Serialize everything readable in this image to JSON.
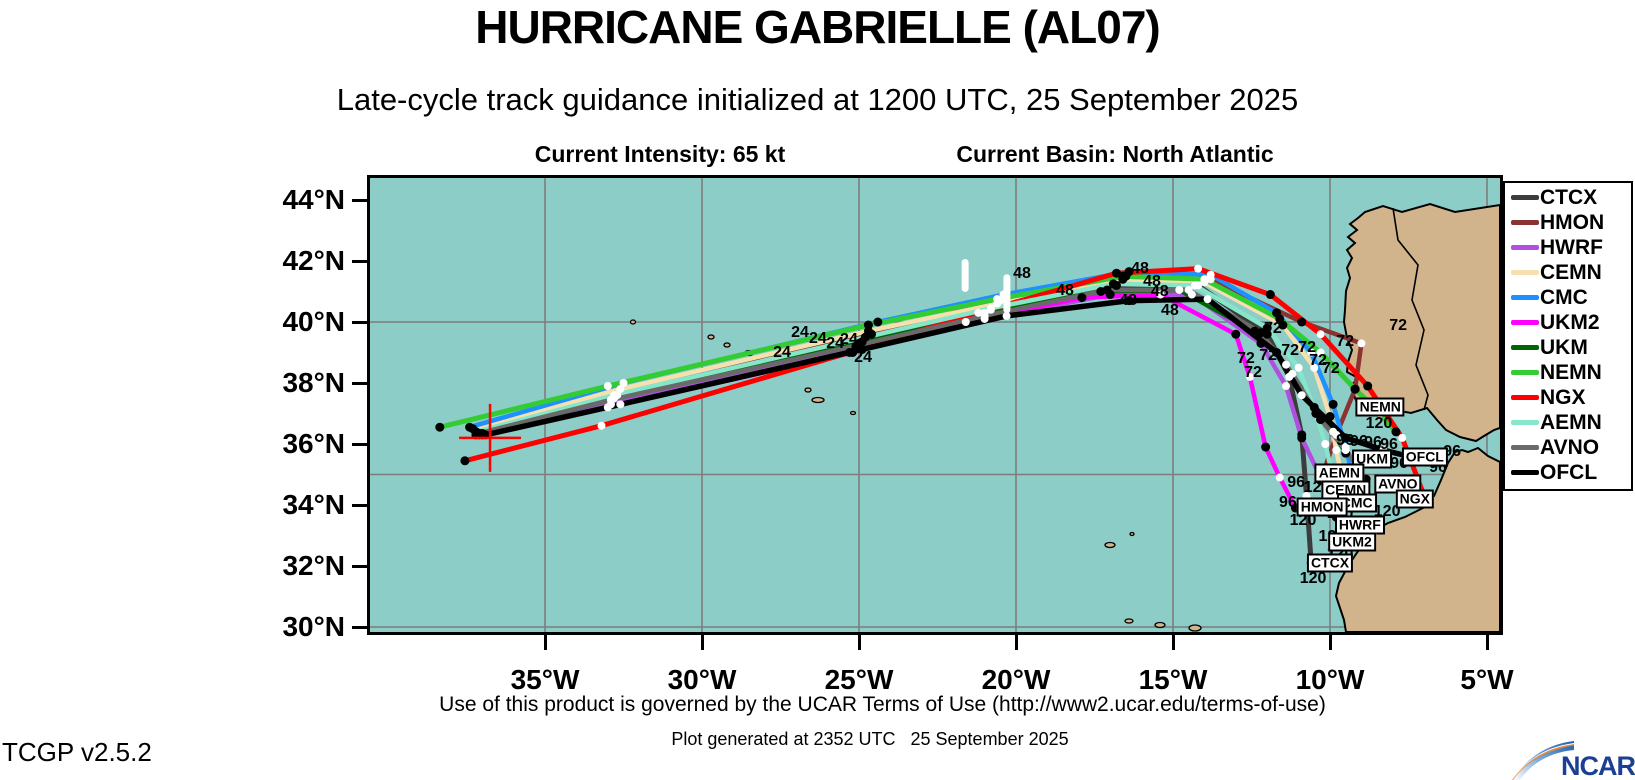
{
  "title": "HURRICANE GABRIELLE (AL07)",
  "subtitle": "Late-cycle track guidance initialized at 1200 UTC, 25 September 2025",
  "info": {
    "intensity": "Current Intensity: 65 kt",
    "basin": "Current Basin: North Atlantic"
  },
  "footer": {
    "terms": "Use of this product is governed by the UCAR Terms of Use (http://www2.ucar.edu/terms-of-use)",
    "generated": "Plot generated at 2352 UTC   25 September 2025",
    "version": "TCGP v2.5.2",
    "logo_text": "NCAR"
  },
  "map": {
    "water_color": "#8ccdc8",
    "land_color": "#d2b48c",
    "grid_color": "#7d7d7d",
    "coast_color": "#000000"
  },
  "axes": {
    "x_ticks": [
      {
        "label": "35°W",
        "lon": 35
      },
      {
        "label": "30°W",
        "lon": 30
      },
      {
        "label": "25°W",
        "lon": 25
      },
      {
        "label": "20°W",
        "lon": 20
      },
      {
        "label": "15°W",
        "lon": 15
      },
      {
        "label": "10°W",
        "lon": 10
      },
      {
        "label": "5°W",
        "lon": 5
      }
    ],
    "y_ticks": [
      {
        "label": "44°N",
        "lat": 44
      },
      {
        "label": "42°N",
        "lat": 42
      },
      {
        "label": "40°N",
        "lat": 40
      },
      {
        "label": "38°N",
        "lat": 38
      },
      {
        "label": "36°N",
        "lat": 36
      },
      {
        "label": "34°N",
        "lat": 34
      },
      {
        "label": "32°N",
        "lat": 32
      },
      {
        "label": "30°N",
        "lat": 30
      }
    ],
    "grid_lats": [
      40,
      35,
      30
    ]
  },
  "chart_data": {
    "type": "line",
    "title": "Late-cycle track guidance for Hurricane Gabrielle (AL07)",
    "x_unit": "degrees West longitude",
    "y_unit": "degrees North latitude",
    "xlim_west_to_east": [
      40.6,
      4.7
    ],
    "ylim": [
      29.8,
      44.7
    ],
    "forecast_hours": [
      0,
      12,
      24,
      36,
      48,
      60,
      72,
      84,
      96,
      108,
      120
    ],
    "series": [
      {
        "name": "CTCX",
        "color": "#3c3c3c",
        "width": 5,
        "points": [
          [
            37.2,
            36.4
          ],
          [
            32.8,
            37.5
          ],
          [
            25.0,
            39.3
          ],
          [
            20.8,
            40.4
          ],
          [
            16.8,
            41.2
          ],
          [
            14.2,
            41.2
          ],
          [
            12.0,
            39.6
          ],
          [
            11.3,
            38.2
          ],
          [
            10.9,
            36.3
          ],
          [
            10.75,
            34.3
          ],
          [
            10.6,
            32.1
          ]
        ]
      },
      {
        "name": "HMON",
        "color": "#8b3232",
        "width": 4.5,
        "points": [
          [
            37.0,
            36.35
          ],
          [
            32.7,
            37.6
          ],
          [
            24.6,
            39.6
          ],
          [
            20.5,
            40.7
          ],
          [
            16.5,
            41.5
          ],
          [
            13.8,
            41.4
          ],
          [
            10.9,
            40.0
          ],
          [
            9.0,
            39.3
          ],
          [
            9.2,
            37.8
          ],
          [
            9.8,
            36.3
          ],
          [
            10.3,
            34.8
          ]
        ]
      },
      {
        "name": "HWRF",
        "color": "#b14fe0",
        "width": 4.5,
        "points": [
          [
            37.1,
            36.3
          ],
          [
            32.9,
            37.3
          ],
          [
            25.1,
            39.2
          ],
          [
            21.0,
            40.1
          ],
          [
            17.0,
            40.9
          ],
          [
            14.4,
            40.9
          ],
          [
            12.2,
            39.3
          ],
          [
            11.4,
            37.9
          ],
          [
            10.9,
            36.2
          ],
          [
            10.3,
            34.9
          ],
          [
            9.8,
            33.6
          ]
        ]
      },
      {
        "name": "CEMN",
        "color": "#f7dfae",
        "width": 4.5,
        "points": [
          [
            37.3,
            36.5
          ],
          [
            32.6,
            37.8
          ],
          [
            24.7,
            39.7
          ],
          [
            20.6,
            40.6
          ],
          [
            16.6,
            41.4
          ],
          [
            14.0,
            41.3
          ],
          [
            11.5,
            39.9
          ],
          [
            10.5,
            38.5
          ],
          [
            10.0,
            36.9
          ],
          [
            9.8,
            35.8
          ],
          [
            9.55,
            34.6
          ]
        ]
      },
      {
        "name": "CMC",
        "color": "#1e90ff",
        "width": 4.5,
        "points": [
          [
            37.4,
            36.55
          ],
          [
            32.5,
            38.0
          ],
          [
            24.4,
            40.0
          ],
          [
            20.4,
            40.9
          ],
          [
            16.4,
            41.65
          ],
          [
            13.8,
            41.55
          ],
          [
            11.7,
            40.3
          ],
          [
            10.6,
            39.0
          ],
          [
            9.9,
            37.3
          ],
          [
            9.5,
            35.9
          ],
          [
            9.2,
            34.6
          ]
        ]
      },
      {
        "name": "UKM2",
        "color": "#ff00ff",
        "width": 4.5,
        "points": [
          [
            37.0,
            36.3
          ],
          [
            33.0,
            37.2
          ],
          [
            25.2,
            39.0
          ],
          [
            21.6,
            40.0
          ],
          [
            17.9,
            40.8
          ],
          [
            15.4,
            40.9
          ],
          [
            13.0,
            39.6
          ],
          [
            12.55,
            38.2
          ],
          [
            12.05,
            35.9
          ],
          [
            11.6,
            34.9
          ],
          [
            11.1,
            33.9
          ]
        ]
      },
      {
        "name": "UKM",
        "color": "#006400",
        "width": 4.5,
        "points": [
          [
            37.2,
            36.3
          ],
          [
            32.9,
            37.45
          ],
          [
            24.9,
            39.35
          ],
          [
            21.0,
            40.3
          ],
          [
            17.3,
            41.0
          ],
          [
            14.8,
            41.05
          ],
          [
            12.4,
            39.7
          ],
          [
            11.4,
            38.6
          ],
          [
            10.5,
            37.2
          ],
          [
            9.9,
            36.4
          ],
          [
            9.5,
            35.7
          ]
        ]
      },
      {
        "name": "NEMN",
        "color": "#33cc33",
        "width": 5,
        "points": [
          [
            38.35,
            36.55
          ],
          [
            33.0,
            37.9
          ],
          [
            24.7,
            39.9
          ],
          [
            20.6,
            40.75
          ],
          [
            16.6,
            41.5
          ],
          [
            14.0,
            41.4
          ],
          [
            11.6,
            40.1
          ],
          [
            10.3,
            39.0
          ],
          [
            9.2,
            37.8
          ],
          [
            8.4,
            37.0
          ],
          [
            7.9,
            36.4
          ]
        ]
      },
      {
        "name": "NGX",
        "color": "#ff0000",
        "width": 5,
        "points": [
          [
            37.55,
            35.45
          ],
          [
            33.2,
            36.6
          ],
          [
            25.3,
            39.0
          ],
          [
            21.2,
            40.3
          ],
          [
            16.8,
            41.6
          ],
          [
            14.2,
            41.75
          ],
          [
            11.9,
            40.9
          ],
          [
            10.3,
            39.6
          ],
          [
            8.8,
            37.9
          ],
          [
            7.7,
            36.2
          ],
          [
            7.0,
            34.3
          ]
        ]
      },
      {
        "name": "AEMN",
        "color": "#85e6c9",
        "width": 4.5,
        "points": [
          [
            37.2,
            36.4
          ],
          [
            32.8,
            37.6
          ],
          [
            24.8,
            39.5
          ],
          [
            20.8,
            40.45
          ],
          [
            16.9,
            41.25
          ],
          [
            14.3,
            41.2
          ],
          [
            12.0,
            39.8
          ],
          [
            11.0,
            38.5
          ],
          [
            10.45,
            37.0
          ],
          [
            10.15,
            36.0
          ],
          [
            9.95,
            35.1
          ]
        ]
      },
      {
        "name": "AVNO",
        "color": "#6a6a6a",
        "width": 4.5,
        "points": [
          [
            37.1,
            36.35
          ],
          [
            32.9,
            37.45
          ],
          [
            25.0,
            39.25
          ],
          [
            21.0,
            40.2
          ],
          [
            17.1,
            41.05
          ],
          [
            14.5,
            41.05
          ],
          [
            12.2,
            39.65
          ],
          [
            11.2,
            38.3
          ],
          [
            10.3,
            36.8
          ],
          [
            9.5,
            35.8
          ],
          [
            8.85,
            34.85
          ]
        ]
      },
      {
        "name": "OFCL",
        "color": "#000000",
        "width": 5.5,
        "points": [
          [
            36.9,
            36.3
          ],
          [
            32.6,
            37.3
          ],
          [
            24.9,
            39.1
          ],
          [
            20.3,
            40.2
          ],
          [
            16.4,
            40.7
          ],
          [
            13.9,
            40.75
          ],
          [
            11.7,
            39.0
          ],
          [
            10.9,
            37.6
          ],
          [
            9.5,
            36.2
          ],
          [
            8.3,
            35.8
          ],
          [
            7.1,
            35.5
          ]
        ]
      }
    ],
    "hour_labels": [
      {
        "t": "24",
        "lon": 27.45,
        "lat": 39.02
      },
      {
        "t": "24",
        "lon": 26.88,
        "lat": 39.67
      },
      {
        "t": "24",
        "lon": 26.31,
        "lat": 39.48
      },
      {
        "t": "24",
        "lon": 25.76,
        "lat": 39.31
      },
      {
        "t": "24",
        "lon": 25.32,
        "lat": 39.44
      },
      {
        "t": "24",
        "lon": 24.87,
        "lat": 38.85
      },
      {
        "t": "48",
        "lon": 19.81,
        "lat": 41.61
      },
      {
        "t": "48",
        "lon": 18.44,
        "lat": 41.05
      },
      {
        "t": "48",
        "lon": 16.05,
        "lat": 41.77
      },
      {
        "t": "48",
        "lon": 15.67,
        "lat": 41.34
      },
      {
        "t": "48",
        "lon": 16.43,
        "lat": 40.72
      },
      {
        "t": "48",
        "lon": 15.1,
        "lat": 40.39
      },
      {
        "t": "48",
        "lon": 15.42,
        "lat": 41.02
      },
      {
        "t": "72",
        "lon": 11.82,
        "lat": 39.8
      },
      {
        "t": "72",
        "lon": 12.68,
        "lat": 38.82
      },
      {
        "t": "72",
        "lon": 11.97,
        "lat": 38.92
      },
      {
        "t": "72",
        "lon": 11.27,
        "lat": 39.08
      },
      {
        "t": "72",
        "lon": 10.73,
        "lat": 39.18
      },
      {
        "t": "72",
        "lon": 10.38,
        "lat": 38.75
      },
      {
        "t": "72",
        "lon": 9.97,
        "lat": 38.49
      },
      {
        "t": "72",
        "lon": 9.52,
        "lat": 39.38
      },
      {
        "t": "72",
        "lon": 7.83,
        "lat": 39.9
      },
      {
        "t": "72",
        "lon": 12.45,
        "lat": 38.36
      },
      {
        "t": "96",
        "lon": 11.08,
        "lat": 34.75
      },
      {
        "t": "96",
        "lon": 11.34,
        "lat": 34.1
      },
      {
        "t": "96",
        "lon": 9.52,
        "lat": 36.13
      },
      {
        "t": "96",
        "lon": 9.08,
        "lat": 36.1
      },
      {
        "t": "96",
        "lon": 8.63,
        "lat": 36.07
      },
      {
        "t": "96",
        "lon": 8.12,
        "lat": 36.0
      },
      {
        "t": "96",
        "lon": 7.8,
        "lat": 35.38
      },
      {
        "t": "96",
        "lon": 6.56,
        "lat": 35.25
      },
      {
        "t": "96",
        "lon": 6.11,
        "lat": 35.77
      },
      {
        "t": "120",
        "lon": 8.44,
        "lat": 36.69
      },
      {
        "t": "120",
        "lon": 10.41,
        "lat": 34.59
      },
      {
        "t": "120",
        "lon": 9.68,
        "lat": 33.74
      },
      {
        "t": "120",
        "lon": 8.18,
        "lat": 33.8
      },
      {
        "t": "120",
        "lon": 10.86,
        "lat": 33.51
      },
      {
        "t": "120",
        "lon": 9.94,
        "lat": 32.98
      },
      {
        "t": "120",
        "lon": 9.68,
        "lat": 32.43
      },
      {
        "t": "120",
        "lon": 10.54,
        "lat": 31.61
      }
    ],
    "endpoint_labels": [
      {
        "name": "NEMN",
        "lon": 8.4,
        "lat": 37.2
      },
      {
        "name": "UKM",
        "lon": 8.66,
        "lat": 35.5
      },
      {
        "name": "OFCL",
        "lon": 6.98,
        "lat": 35.57
      },
      {
        "name": "AEMN",
        "lon": 9.7,
        "lat": 35.05
      },
      {
        "name": "CEMN",
        "lon": 9.5,
        "lat": 34.5
      },
      {
        "name": "AVNO",
        "lon": 7.84,
        "lat": 34.7
      },
      {
        "name": "CMC",
        "lon": 9.15,
        "lat": 34.07
      },
      {
        "name": "NGX",
        "lon": 7.3,
        "lat": 34.2
      },
      {
        "name": "HMON",
        "lon": 10.25,
        "lat": 33.93
      },
      {
        "name": "HWRF",
        "lon": 9.05,
        "lat": 33.34
      },
      {
        "name": "UKM2",
        "lon": 9.3,
        "lat": 32.8
      },
      {
        "name": "CTCX",
        "lon": 10.0,
        "lat": 32.1
      }
    ],
    "start_position_cross": {
      "lon": 36.75,
      "lat": 36.2,
      "color": "#ff0000"
    },
    "white_tick_marks": [
      {
        "lon": 20.29,
        "lat1": 40.4,
        "lat2": 41.45
      },
      {
        "lon": 21.62,
        "lat1": 41.1,
        "lat2": 41.95
      }
    ],
    "legend_position": "right"
  }
}
